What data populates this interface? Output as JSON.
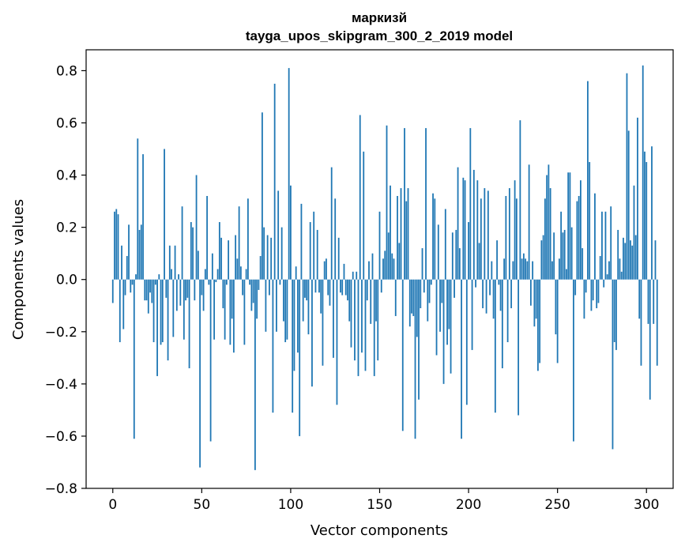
{
  "chart_data": {
    "type": "bar",
    "title_line1": "маркизй",
    "title_line2": "tayga_upos_skipgram_300_2_2019 model",
    "xlabel": "Vector components",
    "ylabel": "Components values",
    "xlim": [
      -15,
      315
    ],
    "ylim": [
      -0.8,
      0.88
    ],
    "xticks": [
      0,
      50,
      100,
      150,
      200,
      250,
      300
    ],
    "yticks": [
      -0.8,
      -0.6,
      -0.4,
      -0.2,
      0.0,
      0.2,
      0.4,
      0.6,
      0.8
    ],
    "xtick_labels": [
      "0",
      "50",
      "100",
      "150",
      "200",
      "250",
      "300"
    ],
    "ytick_labels": [
      "−0.8",
      "−0.6",
      "−0.4",
      "−0.2",
      "0.0",
      "0.2",
      "0.4",
      "0.6",
      "0.8"
    ],
    "bar_color": "#1f77b4",
    "grid": false,
    "legend": "none",
    "x_start": 0,
    "values": [
      -0.09,
      0.26,
      0.27,
      0.25,
      -0.24,
      0.13,
      -0.19,
      -0.06,
      0.09,
      0.21,
      -0.05,
      -0.02,
      -0.61,
      0.02,
      0.54,
      0.19,
      0.21,
      0.48,
      -0.08,
      -0.08,
      -0.13,
      -0.05,
      -0.09,
      -0.24,
      -0.02,
      -0.37,
      0.02,
      -0.25,
      -0.24,
      0.5,
      -0.07,
      -0.31,
      0.13,
      0.04,
      -0.22,
      0.13,
      -0.12,
      0.02,
      -0.1,
      0.28,
      -0.23,
      -0.08,
      -0.07,
      -0.34,
      0.22,
      0.2,
      -0.08,
      0.4,
      0.11,
      -0.72,
      -0.06,
      -0.12,
      0.04,
      0.32,
      -0.02,
      -0.62,
      0.1,
      -0.23,
      -0.01,
      0.04,
      0.22,
      0.16,
      -0.11,
      -0.23,
      -0.02,
      0.15,
      -0.25,
      -0.15,
      -0.28,
      0.17,
      0.08,
      0.28,
      0.05,
      -0.06,
      -0.25,
      0.04,
      0.31,
      -0.02,
      -0.12,
      -0.09,
      -0.73,
      -0.15,
      -0.04,
      0.09,
      0.64,
      0.2,
      -0.2,
      0.17,
      -0.06,
      0.16,
      -0.51,
      0.75,
      -0.2,
      0.34,
      -0.02,
      0.2,
      -0.16,
      -0.24,
      -0.23,
      0.81,
      0.36,
      -0.51,
      -0.35,
      0.05,
      -0.28,
      -0.6,
      0.29,
      -0.16,
      -0.07,
      -0.08,
      -0.21,
      0.22,
      -0.41,
      0.26,
      -0.05,
      0.19,
      -0.05,
      -0.13,
      -0.33,
      0.07,
      0.08,
      -0.06,
      -0.1,
      0.43,
      -0.3,
      0.31,
      -0.48,
      0.16,
      -0.05,
      -0.06,
      0.06,
      -0.06,
      -0.08,
      -0.16,
      -0.26,
      0.03,
      -0.31,
      0.03,
      -0.37,
      0.63,
      -0.28,
      0.49,
      -0.35,
      -0.08,
      0.07,
      -0.17,
      0.1,
      -0.37,
      -0.16,
      -0.31,
      0.26,
      -0.05,
      0.08,
      0.11,
      0.59,
      0.18,
      0.36,
      0.1,
      0.08,
      -0.14,
      0.32,
      0.14,
      0.35,
      -0.58,
      0.58,
      0.3,
      0.35,
      -0.18,
      -0.13,
      -0.14,
      -0.61,
      -0.22,
      -0.46,
      -0.11,
      0.12,
      -0.05,
      0.58,
      -0.16,
      -0.09,
      -0.02,
      0.33,
      0.31,
      -0.29,
      0.21,
      -0.2,
      -0.09,
      -0.4,
      0.27,
      -0.25,
      -0.19,
      -0.36,
      0.18,
      -0.07,
      0.19,
      0.43,
      0.12,
      -0.61,
      0.39,
      0.38,
      -0.48,
      0.22,
      0.58,
      -0.27,
      0.42,
      -0.03,
      0.38,
      0.14,
      0.31,
      -0.11,
      0.35,
      -0.13,
      0.34,
      -0.06,
      0.07,
      -0.15,
      -0.51,
      0.15,
      -0.02,
      -0.12,
      -0.34,
      0.08,
      0.32,
      -0.24,
      0.35,
      -0.11,
      0.07,
      0.38,
      0.31,
      -0.52,
      0.61,
      0.08,
      0.1,
      0.08,
      0.07,
      0.44,
      -0.1,
      0.07,
      -0.18,
      -0.15,
      -0.35,
      -0.32,
      0.15,
      0.17,
      0.31,
      0.4,
      0.44,
      0.35,
      0.07,
      0.18,
      -0.21,
      -0.32,
      0.08,
      0.26,
      0.18,
      0.19,
      0.04,
      0.41,
      0.41,
      0.2,
      -0.62,
      -0.06,
      0.3,
      0.32,
      0.38,
      0.12,
      -0.15,
      -0.05,
      0.76,
      0.45,
      -0.12,
      -0.08,
      0.33,
      -0.11,
      -0.09,
      0.09,
      0.26,
      -0.03,
      0.26,
      0.02,
      0.07,
      0.28,
      -0.65,
      -0.24,
      -0.27,
      0.19,
      0.08,
      0.03,
      0.16,
      0.14,
      0.79,
      0.57,
      0.15,
      0.13,
      0.36,
      0.17,
      0.62,
      -0.15,
      -0.33,
      0.82,
      0.49,
      0.45,
      -0.17,
      -0.46,
      0.51,
      -0.17,
      0.15,
      -0.33
    ]
  }
}
